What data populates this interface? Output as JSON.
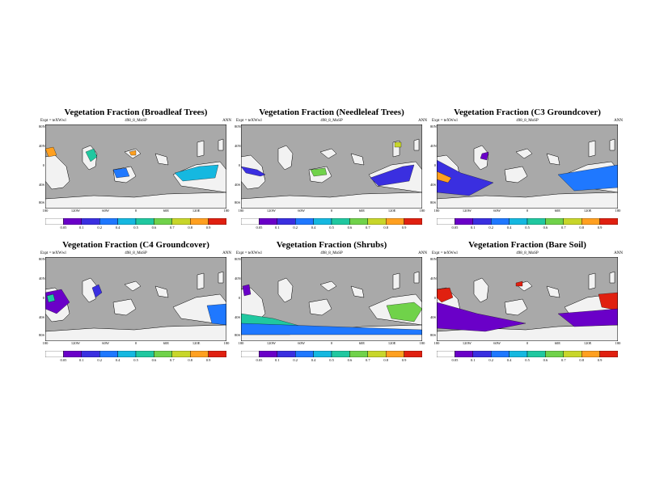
{
  "figure": {
    "panels": [
      {
        "title": "Vegetation Fraction (Broadleaf Trees)",
        "expt": "Expt = teXWwl",
        "run": "498_8_MoSP",
        "period": "ANN",
        "lon_labels": [
          "180",
          "120W",
          "60W",
          "0",
          "60E",
          "120E",
          "180"
        ],
        "cbar_labels": [
          "0.05",
          "0.1",
          "0.2",
          "0.4",
          "0.5",
          "0.6",
          "0.7",
          "0.8",
          "0.9"
        ]
      },
      {
        "title": "Vegetation Fraction (Needleleaf Trees)",
        "expt": "Expt = teXWwl",
        "run": "498_8_MoSP",
        "period": "ANN",
        "lon_labels": [
          "180",
          "120W",
          "60W",
          "0",
          "60E",
          "120E",
          "180"
        ],
        "cbar_labels": [
          "0.05",
          "0.1",
          "0.2",
          "0.4",
          "0.5",
          "0.6",
          "0.7",
          "0.8",
          "0.9"
        ]
      },
      {
        "title": "Vegetation Fraction (C3 Groundcover)",
        "expt": "Expt = teXWwl",
        "run": "498_8_MoSP",
        "period": "ANN",
        "lon_labels": [
          "180",
          "120W",
          "60W",
          "0",
          "60E",
          "120E",
          "180"
        ],
        "cbar_labels": [
          "0.05",
          "0.1",
          "0.2",
          "0.4",
          "0.5",
          "0.6",
          "0.7",
          "0.8",
          "0.9"
        ]
      },
      {
        "title": "Vegetation Fraction (C4 Groundcover)",
        "expt": "Expt = teXWwl",
        "run": "498_8_MoSP",
        "period": "ANN",
        "lon_labels": [
          "180",
          "120W",
          "60W",
          "0",
          "60E",
          "120E",
          "180"
        ],
        "cbar_labels": [
          "0.05",
          "0.1",
          "0.2",
          "0.4",
          "0.5",
          "0.6",
          "0.7",
          "0.8",
          "0.9"
        ]
      },
      {
        "title": "Vegetation Fraction (Shrubs)",
        "expt": "Expt = teXWwl",
        "run": "498_8_MoSP",
        "period": "ANN",
        "lon_labels": [
          "180",
          "120W",
          "60W",
          "0",
          "60E",
          "120E",
          "180"
        ],
        "cbar_labels": [
          "0.05",
          "0.1",
          "0.2",
          "0.4",
          "0.5",
          "0.6",
          "0.7",
          "0.8",
          "0.9"
        ]
      },
      {
        "title": "Vegetation Fraction (Bare Soil)",
        "expt": "Expt = teXWwl",
        "run": "498_8_MoSP",
        "period": "ANN",
        "lon_labels": [
          "180",
          "120W",
          "60W",
          "0",
          "60E",
          "120E",
          "180"
        ],
        "cbar_labels": [
          "0.05",
          "0.1",
          "0.2",
          "0.4",
          "0.5",
          "0.6",
          "0.7",
          "0.8",
          "0.9"
        ]
      }
    ],
    "lat_labels": [
      "80N",
      "40N",
      "0",
      "40S",
      "80S"
    ],
    "colors": {
      "ocean": "#a9a9a9",
      "land_low": "#f2f2f2",
      "scale": [
        "#ffffff",
        "#6a00c8",
        "#3a2fe0",
        "#1f78ff",
        "#15b8e0",
        "#20c8a0",
        "#70d24a",
        "#c8d62a",
        "#ffa020",
        "#e02010"
      ]
    }
  }
}
